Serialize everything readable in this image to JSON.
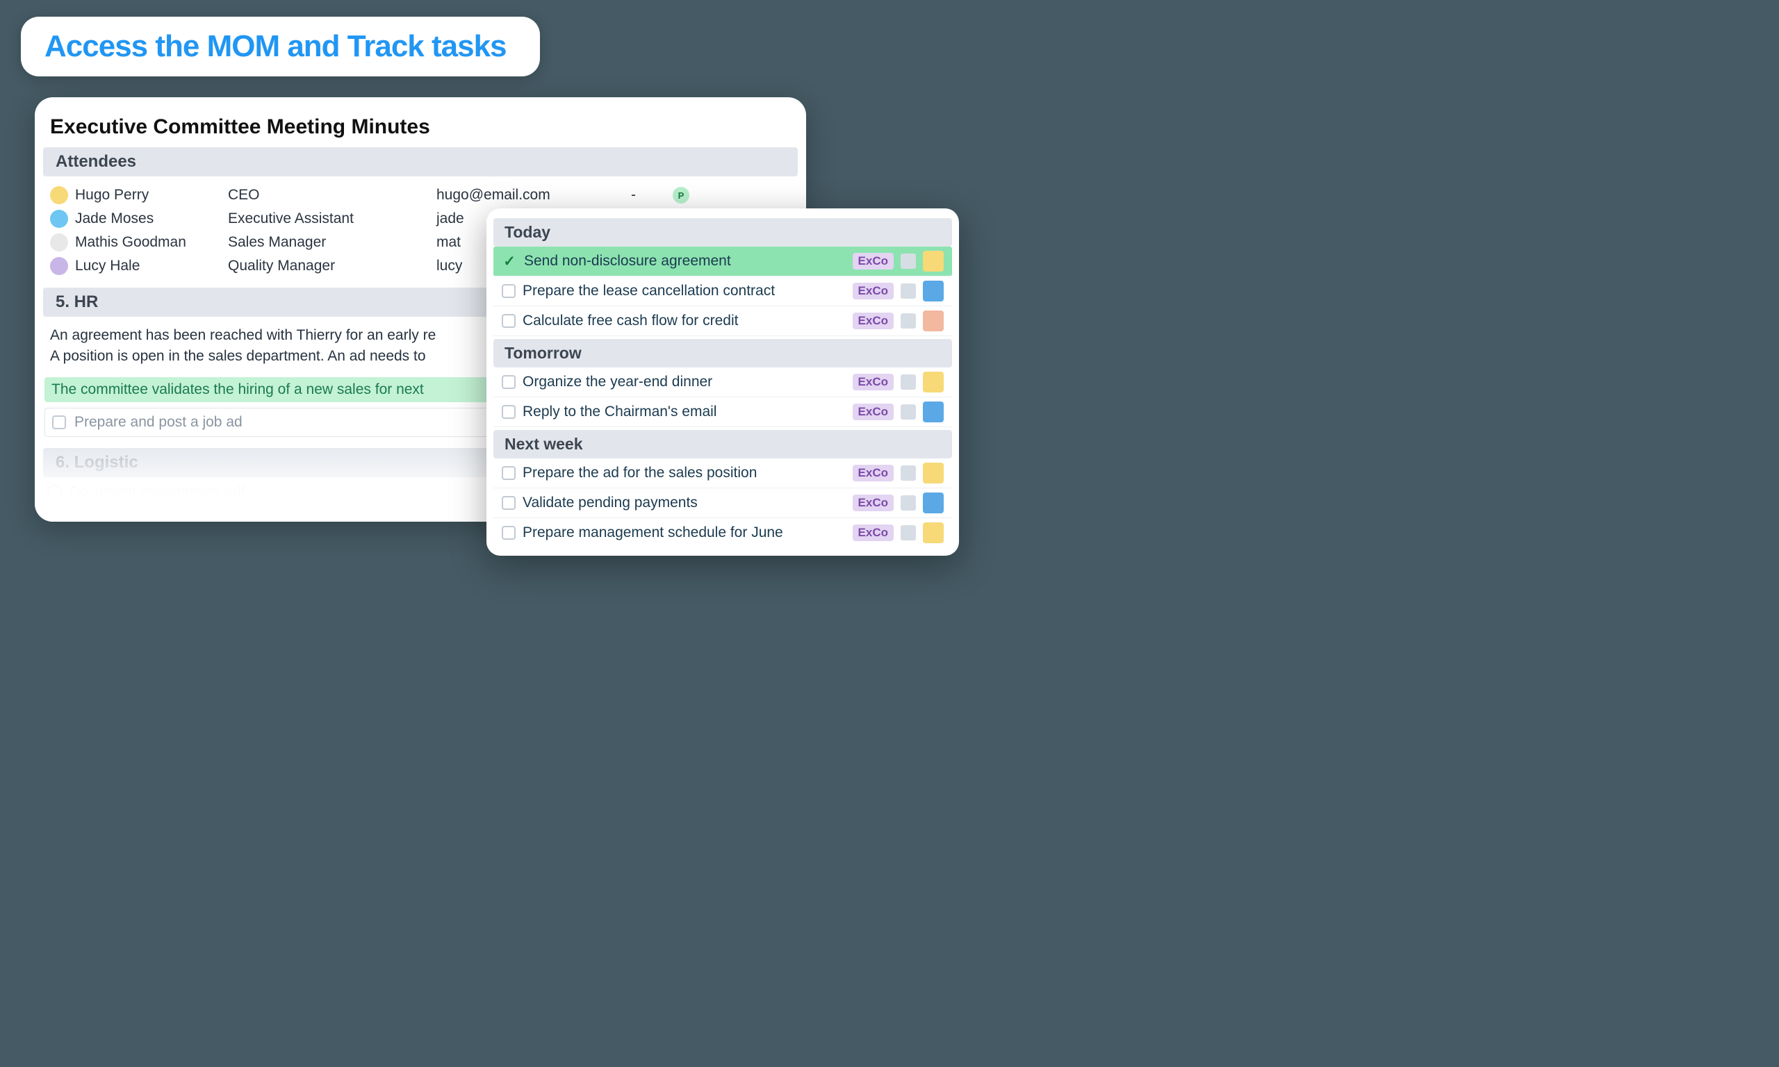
{
  "title": "Access the MOM and Track tasks",
  "colors": {
    "page_bg": "#455a64",
    "title_color": "#2196f3",
    "section_bg": "#e2e6ec",
    "section_text": "#3c4550",
    "highlight_bg": "#c3f2d4",
    "highlight_text": "#1a7a52",
    "task_done_bg": "#8ce3b0",
    "tag_bg": "#e3d4f2",
    "tag_text": "#7b4aa8",
    "body_text": "#26323f",
    "muted_text": "#8a94a1"
  },
  "mom": {
    "heading": "Executive Committee Meeting Minutes",
    "attendees_label": "Attendees",
    "attendees": [
      {
        "name": "Hugo Perry",
        "role": "CEO",
        "email": "hugo@email.com",
        "phone": "-",
        "status": "P",
        "avatar": "#f7d977"
      },
      {
        "name": "Jade Moses",
        "role": "Executive Assistant",
        "email": "jade",
        "phone": "",
        "status": "",
        "avatar": "#6ec6f2"
      },
      {
        "name": "Mathis Goodman",
        "role": "Sales Manager",
        "email": "mat",
        "phone": "",
        "status": "",
        "avatar": "#e8e8e8"
      },
      {
        "name": "Lucy Hale",
        "role": "Quality Manager",
        "email": "lucy",
        "phone": "",
        "status": "",
        "avatar": "#c9b6e8"
      }
    ],
    "section5_label": "5. HR",
    "body_line1": "An agreement has been reached with Thierry for an early re",
    "body_line2": "A position is open in the sales department. An ad needs to",
    "highlight": "The committee validates the hiring of a new sales for next",
    "task_inline": "Prepare and post a job ad",
    "section6_label": "6. Logistic",
    "attachment": "Document presentation.pdf"
  },
  "tasks": {
    "tag_label": "ExCo",
    "groups": [
      {
        "label": "Today",
        "items": [
          {
            "text": "Send non-disclosure agreement",
            "done": true,
            "avatar": "#f7d977"
          },
          {
            "text": "Prepare the lease cancellation contract",
            "done": false,
            "avatar": "#5aa9e6"
          },
          {
            "text": "Calculate free cash flow for credit",
            "done": false,
            "avatar": "#f2b8a0"
          }
        ]
      },
      {
        "label": "Tomorrow",
        "items": [
          {
            "text": "Organize the year-end dinner",
            "done": false,
            "avatar": "#f7d977"
          },
          {
            "text": "Reply to the Chairman's email",
            "done": false,
            "avatar": "#5aa9e6"
          }
        ]
      },
      {
        "label": "Next week",
        "items": [
          {
            "text": "Prepare the ad for the sales position",
            "done": false,
            "avatar": "#f7d977"
          },
          {
            "text": "Validate pending payments",
            "done": false,
            "avatar": "#5aa9e6"
          },
          {
            "text": "Prepare management schedule for June",
            "done": false,
            "avatar": "#f7d977"
          }
        ]
      }
    ]
  }
}
